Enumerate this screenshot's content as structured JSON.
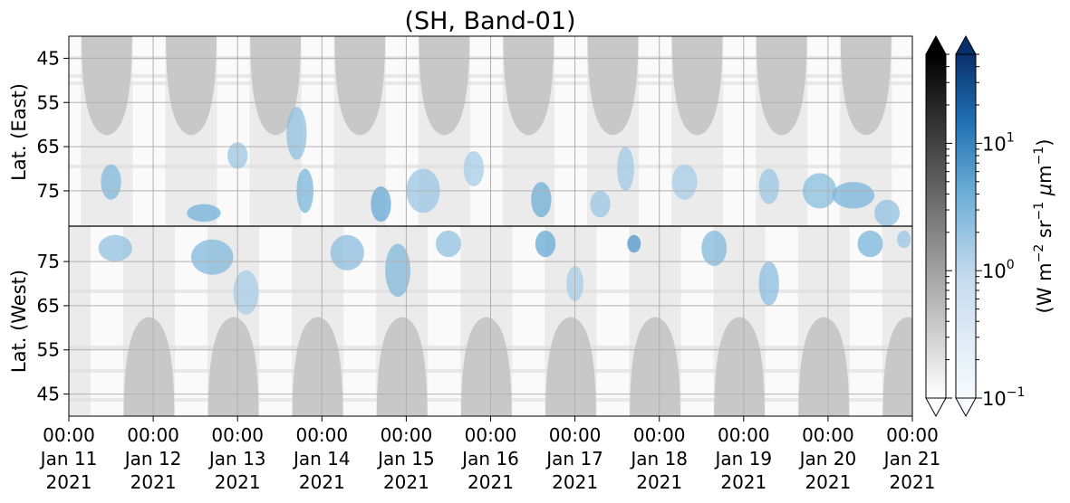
{
  "chart_data": {
    "type": "heatmap",
    "title": "(SH, Band-01)",
    "xlabel": "",
    "x_ticks": [
      [
        "00:00",
        "Jan 11",
        "2021"
      ],
      [
        "00:00",
        "Jan 12",
        "2021"
      ],
      [
        "00:00",
        "Jan 13",
        "2021"
      ],
      [
        "00:00",
        "Jan 14",
        "2021"
      ],
      [
        "00:00",
        "Jan 15",
        "2021"
      ],
      [
        "00:00",
        "Jan 16",
        "2021"
      ],
      [
        "00:00",
        "Jan 17",
        "2021"
      ],
      [
        "00:00",
        "Jan 18",
        "2021"
      ],
      [
        "00:00",
        "Jan 19",
        "2021"
      ],
      [
        "00:00",
        "Jan 20",
        "2021"
      ],
      [
        "00:00",
        "Jan 21",
        "2021"
      ]
    ],
    "xlim": [
      "2021-01-11 00:00",
      "2021-01-21 00:00"
    ],
    "panels": [
      {
        "ylabel": "Lat. (East)",
        "y_ticks": [
          45,
          55,
          65,
          75
        ],
        "ylim": [
          40,
          83
        ],
        "y_direction": "increasing-down"
      },
      {
        "ylabel": "Lat. (West)",
        "y_ticks": [
          75,
          65,
          55,
          45
        ],
        "ylim": [
          83,
          40
        ],
        "y_direction": "increasing-up"
      }
    ],
    "grid": true,
    "colorbars": [
      {
        "name": "grey",
        "colormap": [
          "#ffffff",
          "#000000"
        ],
        "scale": "log",
        "range": [
          0.1,
          50
        ],
        "extend": "both"
      },
      {
        "name": "blue",
        "colormap": [
          "#f7fbff",
          "#08306b"
        ],
        "scale": "log",
        "range": [
          0.1,
          50
        ],
        "extend": "both",
        "tick_labels": [
          {
            "value": 10,
            "base": "10",
            "exp": "1"
          },
          {
            "value": 1,
            "base": "10",
            "exp": "0"
          },
          {
            "value": 0.1,
            "base": "10",
            "exp": "−1"
          }
        ],
        "label": {
          "prefix": "(W m",
          "sup1": "−2",
          "mid1": " sr",
          "sup2": "−1",
          "mid2": " ",
          "mu": "μ",
          "mid3": "m",
          "sup3": "−1",
          "suffix": ")"
        }
      }
    ],
    "shaded_regions": {
      "no_data_color": "#c8c8c8",
      "east_centers_day": [
        0.45,
        1.45,
        2.45,
        3.45,
        4.45,
        5.45,
        6.45,
        7.45,
        8.45,
        9.45
      ],
      "west_centers_day": [
        0.95,
        1.95,
        2.95,
        3.95,
        4.95,
        5.95,
        6.95,
        7.95,
        8.95,
        9.95
      ],
      "edge_lat": 62
    },
    "emission_blobs": [
      {
        "x": 0.5,
        "lat": 73,
        "panel": "east",
        "dx": 0.12,
        "dy": 4,
        "v": 1.5
      },
      {
        "x": 0.55,
        "lat": 78,
        "panel": "west",
        "dx": 0.2,
        "dy": 3,
        "v": 1.2
      },
      {
        "x": 1.6,
        "lat": 80,
        "panel": "east",
        "dx": 0.2,
        "dy": 2,
        "v": 2.0
      },
      {
        "x": 1.7,
        "lat": 76,
        "panel": "west",
        "dx": 0.25,
        "dy": 4,
        "v": 1.5
      },
      {
        "x": 2.0,
        "lat": 67,
        "panel": "east",
        "dx": 0.12,
        "dy": 3,
        "v": 1.0
      },
      {
        "x": 2.1,
        "lat": 68,
        "panel": "west",
        "dx": 0.15,
        "dy": 5,
        "v": 0.8
      },
      {
        "x": 2.7,
        "lat": 62,
        "panel": "east",
        "dx": 0.12,
        "dy": 6,
        "v": 1.2
      },
      {
        "x": 2.8,
        "lat": 75,
        "panel": "east",
        "dx": 0.1,
        "dy": 5,
        "v": 1.8
      },
      {
        "x": 3.3,
        "lat": 77,
        "panel": "west",
        "dx": 0.2,
        "dy": 4,
        "v": 1.3
      },
      {
        "x": 3.7,
        "lat": 78,
        "panel": "east",
        "dx": 0.12,
        "dy": 4,
        "v": 2.5
      },
      {
        "x": 3.9,
        "lat": 73,
        "panel": "west",
        "dx": 0.15,
        "dy": 6,
        "v": 1.5
      },
      {
        "x": 4.2,
        "lat": 75,
        "panel": "east",
        "dx": 0.2,
        "dy": 5,
        "v": 1.0
      },
      {
        "x": 4.5,
        "lat": 79,
        "panel": "west",
        "dx": 0.15,
        "dy": 3,
        "v": 1.2
      },
      {
        "x": 4.8,
        "lat": 70,
        "panel": "east",
        "dx": 0.12,
        "dy": 4,
        "v": 0.8
      },
      {
        "x": 5.6,
        "lat": 77,
        "panel": "east",
        "dx": 0.12,
        "dy": 4,
        "v": 2.2
      },
      {
        "x": 5.65,
        "lat": 79,
        "panel": "west",
        "dx": 0.12,
        "dy": 3,
        "v": 2.5
      },
      {
        "x": 6.0,
        "lat": 70,
        "panel": "west",
        "dx": 0.1,
        "dy": 4,
        "v": 0.8
      },
      {
        "x": 6.3,
        "lat": 78,
        "panel": "east",
        "dx": 0.12,
        "dy": 3,
        "v": 1.0
      },
      {
        "x": 6.6,
        "lat": 70,
        "panel": "east",
        "dx": 0.1,
        "dy": 5,
        "v": 0.9
      },
      {
        "x": 6.7,
        "lat": 79,
        "panel": "west",
        "dx": 0.08,
        "dy": 2,
        "v": 4.0
      },
      {
        "x": 7.3,
        "lat": 73,
        "panel": "east",
        "dx": 0.15,
        "dy": 4,
        "v": 0.8
      },
      {
        "x": 7.65,
        "lat": 78,
        "panel": "west",
        "dx": 0.15,
        "dy": 4,
        "v": 1.5
      },
      {
        "x": 8.3,
        "lat": 70,
        "panel": "west",
        "dx": 0.12,
        "dy": 5,
        "v": 1.3
      },
      {
        "x": 8.3,
        "lat": 74,
        "panel": "east",
        "dx": 0.12,
        "dy": 4,
        "v": 1.0
      },
      {
        "x": 8.9,
        "lat": 75,
        "panel": "east",
        "dx": 0.2,
        "dy": 4,
        "v": 1.4
      },
      {
        "x": 9.3,
        "lat": 76,
        "panel": "east",
        "dx": 0.25,
        "dy": 3,
        "v": 1.8
      },
      {
        "x": 9.5,
        "lat": 79,
        "panel": "west",
        "dx": 0.15,
        "dy": 3,
        "v": 1.8
      },
      {
        "x": 9.7,
        "lat": 80,
        "panel": "east",
        "dx": 0.15,
        "dy": 3,
        "v": 1.2
      },
      {
        "x": 9.9,
        "lat": 80,
        "panel": "west",
        "dx": 0.08,
        "dy": 2,
        "v": 1.0
      }
    ]
  }
}
